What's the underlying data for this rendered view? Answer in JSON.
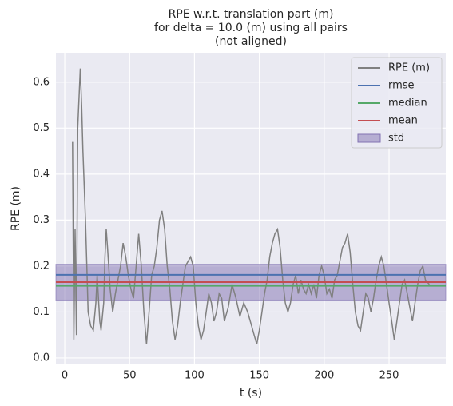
{
  "chart_data": {
    "type": "line",
    "title": [
      "RPE w.r.t. translation part (m)",
      "for delta = 10.0 (m) using all pairs",
      "(not aligned)"
    ],
    "xlabel": "t (s)",
    "ylabel": "RPE (m)",
    "xlim": [
      -6.8,
      293.7
    ],
    "ylim": [
      -0.014,
      0.664
    ],
    "xticks": [
      0,
      50,
      100,
      150,
      200,
      250
    ],
    "yticks": [
      {
        "value": 0,
        "label": "0.0"
      },
      0.1,
      0.2,
      0.3,
      0.4,
      0.5,
      0.6
    ],
    "grid": true,
    "legend": "upper right",
    "x": [
      6,
      7,
      8,
      9,
      10,
      12,
      13,
      14,
      16,
      17,
      18,
      20,
      22,
      24,
      25,
      27,
      28,
      30,
      31,
      32,
      33,
      35,
      37,
      39,
      41,
      43,
      45,
      47,
      49,
      51,
      53,
      55,
      57,
      59,
      61,
      63,
      65,
      67,
      69,
      71,
      73,
      75,
      77,
      79,
      81,
      83,
      85,
      87,
      89,
      91,
      93,
      95,
      97,
      99,
      101,
      103,
      105,
      107,
      109,
      111,
      113,
      115,
      117,
      119,
      121,
      123,
      126,
      129,
      132,
      135,
      138,
      141,
      144,
      146,
      148,
      150,
      152,
      154,
      156,
      158,
      160,
      162,
      164,
      166,
      168,
      170,
      172,
      174,
      176,
      178,
      180,
      182,
      184,
      186,
      188,
      190,
      192,
      194,
      196,
      198,
      200,
      202,
      204,
      206,
      208,
      210,
      212,
      214,
      216,
      218,
      220,
      222,
      224,
      226,
      228,
      230,
      232,
      234,
      236,
      238,
      240,
      242,
      244,
      246,
      248,
      250,
      252,
      254,
      256,
      258,
      260,
      262,
      264,
      266,
      268,
      270,
      272,
      274,
      276,
      278,
      281
    ],
    "series": [
      {
        "name": "RPE (m)",
        "color": "#808080",
        "values": [
          0.47,
          0.04,
          0.28,
          0.05,
          0.5,
          0.63,
          0.55,
          0.45,
          0.3,
          0.2,
          0.1,
          0.07,
          0.06,
          0.12,
          0.18,
          0.08,
          0.06,
          0.12,
          0.22,
          0.28,
          0.24,
          0.15,
          0.1,
          0.14,
          0.17,
          0.2,
          0.25,
          0.22,
          0.18,
          0.15,
          0.13,
          0.2,
          0.27,
          0.2,
          0.1,
          0.03,
          0.1,
          0.18,
          0.2,
          0.24,
          0.3,
          0.32,
          0.28,
          0.2,
          0.15,
          0.08,
          0.04,
          0.07,
          0.12,
          0.16,
          0.2,
          0.21,
          0.22,
          0.2,
          0.12,
          0.07,
          0.04,
          0.06,
          0.1,
          0.14,
          0.12,
          0.08,
          0.1,
          0.14,
          0.13,
          0.08,
          0.11,
          0.16,
          0.13,
          0.09,
          0.12,
          0.1,
          0.07,
          0.05,
          0.03,
          0.06,
          0.1,
          0.14,
          0.17,
          0.22,
          0.25,
          0.27,
          0.28,
          0.24,
          0.17,
          0.12,
          0.1,
          0.12,
          0.16,
          0.18,
          0.14,
          0.17,
          0.15,
          0.14,
          0.16,
          0.14,
          0.16,
          0.13,
          0.18,
          0.2,
          0.18,
          0.14,
          0.15,
          0.13,
          0.17,
          0.18,
          0.21,
          0.24,
          0.25,
          0.27,
          0.23,
          0.16,
          0.1,
          0.07,
          0.06,
          0.1,
          0.14,
          0.13,
          0.1,
          0.13,
          0.17,
          0.2,
          0.22,
          0.2,
          0.16,
          0.12,
          0.08,
          0.04,
          0.08,
          0.12,
          0.16,
          0.17,
          0.14,
          0.11,
          0.08,
          0.12,
          0.16,
          0.19,
          0.2,
          0.17,
          0.16
        ]
      }
    ],
    "stats": [
      {
        "name": "rmse",
        "color": "#4c72b0",
        "value": 0.181
      },
      {
        "name": "median",
        "color": "#55a868",
        "value": 0.157
      },
      {
        "name": "mean",
        "color": "#c44e52",
        "value": 0.165
      }
    ],
    "std": {
      "name": "std",
      "color": "#8172b2",
      "value": 0.039
    }
  }
}
